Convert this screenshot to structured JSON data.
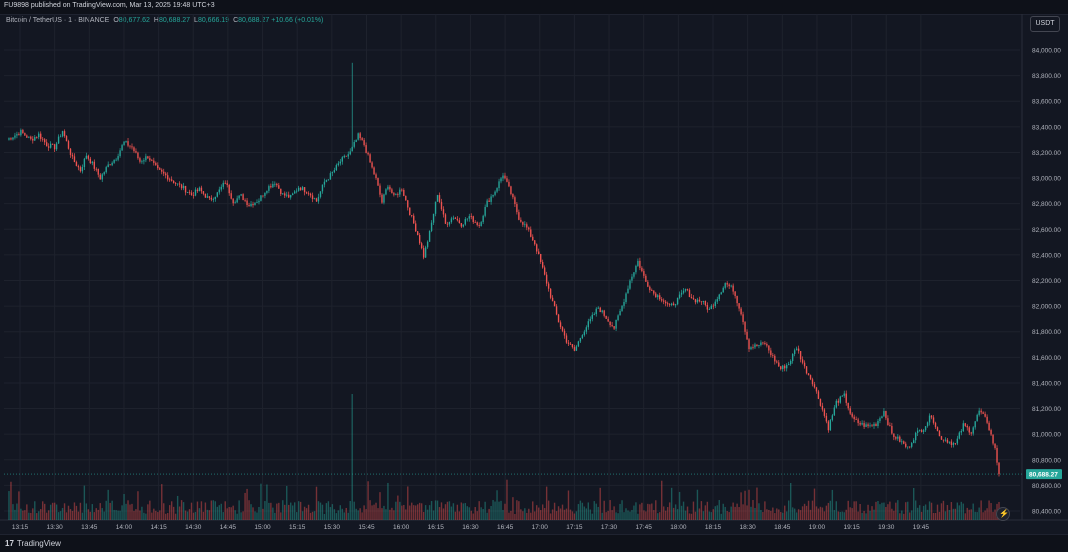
{
  "header": {
    "published": "FU9898 published on TradingView.com, Mar 13, 2025 19:48 UTC+3"
  },
  "legend": {
    "symbol": "Bitcoin / TetherUS · 1 · BINANCE",
    "open_label": "O",
    "open": "80,677.62",
    "high_label": "H",
    "high": "80,688.27",
    "low_label": "L",
    "low": "80,666.19",
    "close_label": "C",
    "close": "80,688.27",
    "change": "+10.66 (+0.01%)"
  },
  "currency": "USDT",
  "last_price_label": "80,688.27",
  "footer": {
    "brand": "TradingView",
    "brand_mark": "17"
  },
  "icons": {
    "goto_realtime": "lightning-icon"
  },
  "colors": {
    "up": "#26a69a",
    "down": "#ef5350",
    "background": "#131722",
    "grid": "#1e222d"
  },
  "chart_data": {
    "type": "candlestick",
    "title": "Bitcoin / TetherUS · 1 · BINANCE",
    "y_ticks": [
      "84,000.00",
      "83,800.00",
      "83,600.00",
      "83,400.00",
      "83,200.00",
      "83,000.00",
      "82,800.00",
      "82,600.00",
      "82,400.00",
      "82,200.00",
      "82,000.00",
      "81,800.00",
      "81,600.00",
      "81,400.00",
      "81,200.00",
      "81,000.00",
      "80,800.00",
      "80,600.00",
      "80,400.00"
    ],
    "x_ticks": [
      "13:15",
      "13:30",
      "13:45",
      "14:00",
      "14:15",
      "14:30",
      "14:45",
      "15:00",
      "15:15",
      "15:30",
      "15:45",
      "16:00",
      "16:15",
      "16:30",
      "16:45",
      "17:00",
      "17:15",
      "17:30",
      "17:45",
      "18:00",
      "18:15",
      "18:30",
      "18:45",
      "19:00",
      "19:15",
      "19:30",
      "19:45"
    ],
    "ylim": [
      80350,
      84100
    ],
    "last_price": 80688.27,
    "close_series": [
      [
        0,
        83300
      ],
      [
        7,
        83360
      ],
      [
        12,
        83300
      ],
      [
        16,
        83340
      ],
      [
        20,
        83260
      ],
      [
        24,
        83240
      ],
      [
        28,
        83370
      ],
      [
        33,
        83150
      ],
      [
        37,
        83060
      ],
      [
        40,
        83180
      ],
      [
        43,
        83110
      ],
      [
        47,
        83000
      ],
      [
        51,
        83100
      ],
      [
        55,
        83160
      ],
      [
        59,
        83280
      ],
      [
        63,
        83240
      ],
      [
        67,
        83130
      ],
      [
        71,
        83170
      ],
      [
        76,
        83060
      ],
      [
        80,
        83020
      ],
      [
        85,
        82960
      ],
      [
        89,
        82920
      ],
      [
        93,
        82870
      ],
      [
        97,
        82910
      ],
      [
        102,
        82830
      ],
      [
        106,
        82880
      ],
      [
        110,
        82970
      ],
      [
        114,
        82820
      ],
      [
        118,
        82860
      ],
      [
        122,
        82790
      ],
      [
        127,
        82830
      ],
      [
        131,
        82920
      ],
      [
        135,
        82970
      ],
      [
        139,
        82870
      ],
      [
        143,
        82850
      ],
      [
        147,
        82930
      ],
      [
        152,
        82890
      ],
      [
        156,
        82820
      ],
      [
        160,
        82970
      ],
      [
        164,
        83040
      ],
      [
        168,
        83130
      ],
      [
        173,
        83200
      ],
      [
        177,
        83330
      ],
      [
        180,
        83260
      ],
      [
        183,
        83120
      ],
      [
        186,
        82990
      ],
      [
        189,
        82810
      ],
      [
        192,
        82950
      ],
      [
        195,
        82850
      ],
      [
        199,
        82920
      ],
      [
        203,
        82730
      ],
      [
        207,
        82560
      ],
      [
        210,
        82390
      ],
      [
        213,
        82570
      ],
      [
        217,
        82880
      ],
      [
        221,
        82640
      ],
      [
        225,
        82700
      ],
      [
        229,
        82640
      ],
      [
        233,
        82700
      ],
      [
        238,
        82630
      ],
      [
        242,
        82810
      ],
      [
        246,
        82900
      ],
      [
        250,
        83030
      ],
      [
        254,
        82880
      ],
      [
        258,
        82690
      ],
      [
        262,
        82610
      ],
      [
        266,
        82490
      ],
      [
        270,
        82290
      ],
      [
        274,
        82080
      ],
      [
        278,
        81880
      ],
      [
        282,
        81730
      ],
      [
        286,
        81650
      ],
      [
        290,
        81790
      ],
      [
        294,
        81890
      ],
      [
        298,
        81990
      ],
      [
        302,
        81910
      ],
      [
        306,
        81830
      ],
      [
        310,
        82000
      ],
      [
        314,
        82200
      ],
      [
        318,
        82350
      ],
      [
        322,
        82190
      ],
      [
        326,
        82100
      ],
      [
        330,
        82060
      ],
      [
        334,
        81990
      ],
      [
        338,
        82050
      ],
      [
        342,
        82130
      ],
      [
        346,
        82050
      ],
      [
        350,
        82040
      ],
      [
        354,
        81970
      ],
      [
        358,
        82070
      ],
      [
        362,
        82180
      ],
      [
        366,
        82130
      ],
      [
        370,
        81950
      ],
      [
        374,
        81680
      ],
      [
        378,
        81690
      ],
      [
        382,
        81710
      ],
      [
        386,
        81600
      ],
      [
        390,
        81510
      ],
      [
        394,
        81550
      ],
      [
        398,
        81680
      ],
      [
        402,
        81520
      ],
      [
        406,
        81410
      ],
      [
        410,
        81240
      ],
      [
        414,
        81050
      ],
      [
        418,
        81250
      ],
      [
        422,
        81300
      ],
      [
        426,
        81120
      ],
      [
        430,
        81080
      ],
      [
        434,
        81060
      ],
      [
        438,
        81080
      ],
      [
        442,
        81180
      ],
      [
        446,
        81000
      ],
      [
        450,
        80950
      ],
      [
        454,
        80890
      ],
      [
        458,
        81000
      ],
      [
        462,
        81050
      ],
      [
        466,
        81150
      ],
      [
        470,
        80980
      ],
      [
        474,
        80950
      ],
      [
        478,
        80920
      ],
      [
        482,
        81070
      ],
      [
        486,
        81020
      ],
      [
        490,
        81180
      ],
      [
        494,
        81100
      ],
      [
        498,
        80880
      ],
      [
        500,
        80688
      ]
    ]
  }
}
